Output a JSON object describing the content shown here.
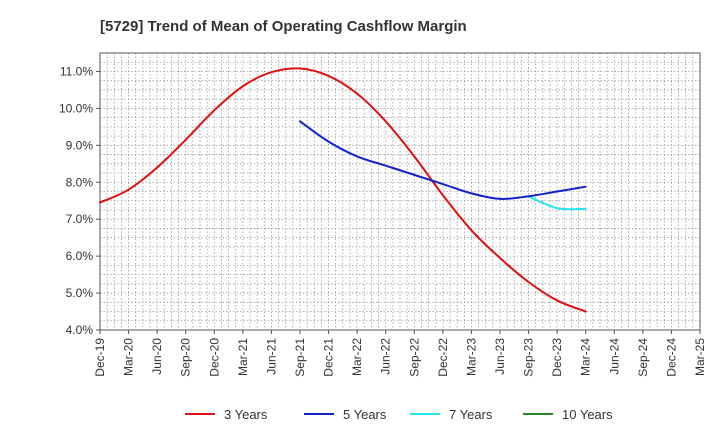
{
  "chart_data": {
    "type": "line",
    "title": "[5729]  Trend of Mean of Operating Cashflow Margin",
    "xlabel": "",
    "ylabel": "",
    "ylim": [
      4.0,
      11.5
    ],
    "yticks": [
      4.0,
      5.0,
      6.0,
      7.0,
      8.0,
      9.0,
      10.0,
      11.0
    ],
    "ytick_labels": [
      "4.0%",
      "5.0%",
      "6.0%",
      "7.0%",
      "8.0%",
      "9.0%",
      "10.0%",
      "11.0%"
    ],
    "categories": [
      "Dec-19",
      "Mar-20",
      "Jun-20",
      "Sep-20",
      "Dec-20",
      "Mar-21",
      "Jun-21",
      "Sep-21",
      "Dec-21",
      "Mar-22",
      "Jun-22",
      "Sep-22",
      "Dec-22",
      "Mar-23",
      "Jun-23",
      "Sep-23",
      "Dec-23",
      "Mar-24",
      "Jun-24",
      "Sep-24",
      "Dec-24",
      "Mar-25"
    ],
    "grid": true,
    "legend_position": "bottom",
    "series": [
      {
        "name": "3 Years",
        "color": "#dd1111",
        "values": [
          7.45,
          7.8,
          8.4,
          9.15,
          9.95,
          10.6,
          10.98,
          11.08,
          10.88,
          10.4,
          9.65,
          8.7,
          7.65,
          6.7,
          5.95,
          5.3,
          4.8,
          4.5,
          null,
          null,
          null,
          null
        ]
      },
      {
        "name": "5 Years",
        "color": "#1122cc",
        "values": [
          null,
          null,
          null,
          null,
          null,
          null,
          null,
          9.65,
          9.1,
          8.7,
          8.45,
          8.2,
          7.95,
          7.7,
          7.55,
          7.62,
          7.75,
          7.88,
          null,
          null,
          null,
          null
        ]
      },
      {
        "name": "7 Years",
        "color": "#22e5f0",
        "values": [
          null,
          null,
          null,
          null,
          null,
          null,
          null,
          null,
          null,
          null,
          null,
          null,
          null,
          null,
          null,
          7.62,
          7.3,
          7.28,
          null,
          null,
          null,
          null
        ]
      },
      {
        "name": "10 Years",
        "color": "#228822",
        "values": [
          null,
          null,
          null,
          null,
          null,
          null,
          null,
          null,
          null,
          null,
          null,
          null,
          null,
          null,
          null,
          null,
          null,
          null,
          null,
          null,
          null,
          null
        ]
      }
    ]
  }
}
